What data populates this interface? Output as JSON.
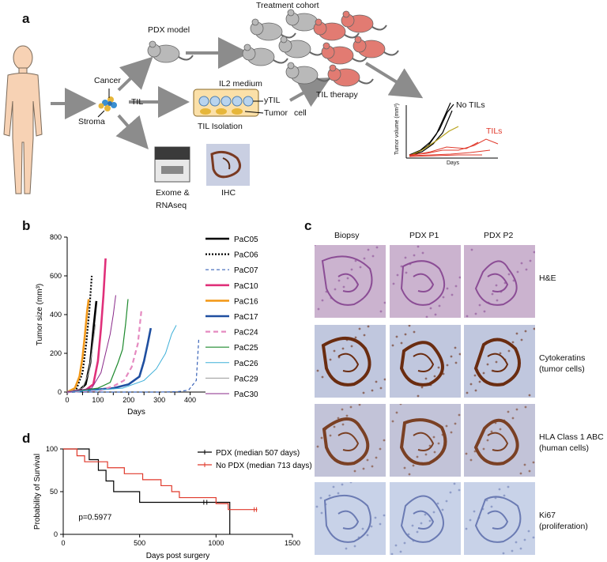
{
  "panel_a": {
    "letter": "a",
    "treatment_cohort": "Treatment cohort",
    "pdx_model": "PDX model",
    "cancer": "Cancer",
    "til": "TIL",
    "stroma": "Stroma",
    "il2_medium": "IL2 medium",
    "ytil": "yTIL",
    "tumor": "Tumor",
    "til_isolation": "TIL Isolation",
    "cell": "cell",
    "til_therapy": "TIL therapy",
    "exome": "Exome &",
    "rnaseq": "RNAseq",
    "ihc": "IHC",
    "mini_no_tils": "No TILs",
    "mini_tils": "TILs",
    "mini_ylabel": "Tumor volume (mm³)",
    "mini_xlabel": "Days",
    "colors": {
      "mouse_grey": "#b9b9b9",
      "mouse_red": "#e27b72",
      "tils_red": "#e0392b",
      "arrow": "#8c8c8c"
    }
  },
  "panel_b": {
    "letter": "b",
    "chart_data": {
      "type": "line",
      "xlabel": "Days",
      "ylabel": "Tumor size (mm³)",
      "xlim": [
        0,
        450
      ],
      "ylim": [
        0,
        800
      ],
      "xticks": [
        0,
        50,
        100,
        150,
        200,
        250,
        300,
        350,
        400
      ],
      "yticks": [
        0,
        200,
        400,
        600,
        800
      ],
      "series": [
        {
          "name": "PaC05",
          "color": "#000000",
          "dash": "",
          "width": 2.6,
          "x": [
            0,
            40,
            60,
            75,
            85,
            95
          ],
          "y": [
            0,
            10,
            40,
            150,
            320,
            470
          ]
        },
        {
          "name": "PaC06",
          "color": "#000000",
          "dash": "2,2",
          "width": 2.2,
          "x": [
            0,
            30,
            50,
            62,
            72,
            80
          ],
          "y": [
            0,
            15,
            100,
            250,
            420,
            600
          ]
        },
        {
          "name": "PaC07",
          "color": "#3a64b8",
          "dash": "4,3",
          "width": 1.2,
          "x": [
            0,
            300,
            360,
            395,
            410,
            420,
            428
          ],
          "y": [
            0,
            0,
            2,
            10,
            40,
            60,
            270
          ]
        },
        {
          "name": "PaC10",
          "color": "#e0307a",
          "dash": "",
          "width": 2.6,
          "x": [
            0,
            60,
            85,
            100,
            110,
            118,
            125
          ],
          "y": [
            0,
            10,
            40,
            160,
            330,
            500,
            690
          ]
        },
        {
          "name": "PaC16",
          "color": "#f39a1b",
          "dash": "",
          "width": 2.6,
          "x": [
            0,
            25,
            40,
            50,
            58,
            65,
            70
          ],
          "y": [
            0,
            20,
            80,
            180,
            300,
            420,
            480
          ]
        },
        {
          "name": "PaC17",
          "color": "#1f4fa0",
          "dash": "",
          "width": 2.6,
          "x": [
            0,
            150,
            200,
            235,
            250,
            262,
            272
          ],
          "y": [
            0,
            20,
            40,
            80,
            160,
            250,
            330
          ]
        },
        {
          "name": "PaC24",
          "color": "#e58ac0",
          "dash": "6,4",
          "width": 2.2,
          "x": [
            0,
            110,
            150,
            185,
            210,
            230,
            242
          ],
          "y": [
            0,
            10,
            30,
            60,
            130,
            250,
            430
          ]
        },
        {
          "name": "PaC25",
          "color": "#1e8a2e",
          "dash": "",
          "width": 1.2,
          "x": [
            0,
            100,
            140,
            165,
            180,
            190,
            198
          ],
          "y": [
            0,
            20,
            50,
            150,
            220,
            350,
            480
          ]
        },
        {
          "name": "PaC26",
          "color": "#3fb0d8",
          "dash": "",
          "width": 1.0,
          "x": [
            0,
            180,
            250,
            290,
            320,
            340,
            355
          ],
          "y": [
            0,
            20,
            60,
            120,
            200,
            300,
            345
          ]
        },
        {
          "name": "PaC29",
          "color": "#999999",
          "dash": "",
          "width": 1.0,
          "x": [
            0,
            50,
            70,
            80,
            88,
            92
          ],
          "y": [
            0,
            20,
            100,
            200,
            300,
            350
          ]
        },
        {
          "name": "PaC30",
          "color": "#8a2a8a",
          "dash": "",
          "width": 1.0,
          "x": [
            0,
            80,
            110,
            125,
            140,
            150,
            158
          ],
          "y": [
            0,
            20,
            100,
            200,
            300,
            400,
            500
          ]
        }
      ]
    }
  },
  "panel_c": {
    "letter": "c",
    "columns": [
      "Biopsy",
      "PDX P1",
      "PDX P2"
    ],
    "rows": [
      {
        "label1": "H&E",
        "label2": ""
      },
      {
        "label1": "Cytokeratins",
        "label2": "(tumor cells)"
      },
      {
        "label1": "HLA Class 1 ABC",
        "label2": "(human cells)"
      },
      {
        "label1": "Ki67",
        "label2": "(proliferation)"
      }
    ]
  },
  "panel_d": {
    "letter": "d",
    "chart_data": {
      "type": "line",
      "xlabel": "Days post surgery",
      "ylabel": "Probability of Survival",
      "xlim": [
        0,
        1500
      ],
      "ylim": [
        0,
        100
      ],
      "xticks": [
        0,
        500,
        1000,
        1500
      ],
      "yticks": [
        0,
        50,
        100
      ],
      "annotation": "p=0.5977",
      "series": [
        {
          "name": "PDX (median 507 days)",
          "color": "#000000",
          "steps_x": [
            0,
            170,
            230,
            280,
            330,
            420,
            500,
            620,
            720,
            940,
            1090
          ],
          "steps_y": [
            100,
            87.5,
            75,
            62.5,
            50,
            50,
            37.5,
            37.5,
            37.5,
            37.5,
            0
          ],
          "censored_x": [
            920,
            940
          ],
          "censored_y": [
            37.5,
            37.5
          ]
        },
        {
          "name": "No PDX (median 713 days)",
          "color": "#e0392b",
          "steps_x": [
            0,
            90,
            140,
            290,
            400,
            520,
            640,
            710,
            760,
            1000,
            1080,
            1270
          ],
          "steps_y": [
            100,
            92,
            85,
            78,
            71,
            64,
            57,
            50,
            43,
            36,
            29,
            29
          ],
          "censored_x": [
            1250,
            1265
          ],
          "censored_y": [
            29,
            29
          ]
        }
      ]
    }
  }
}
